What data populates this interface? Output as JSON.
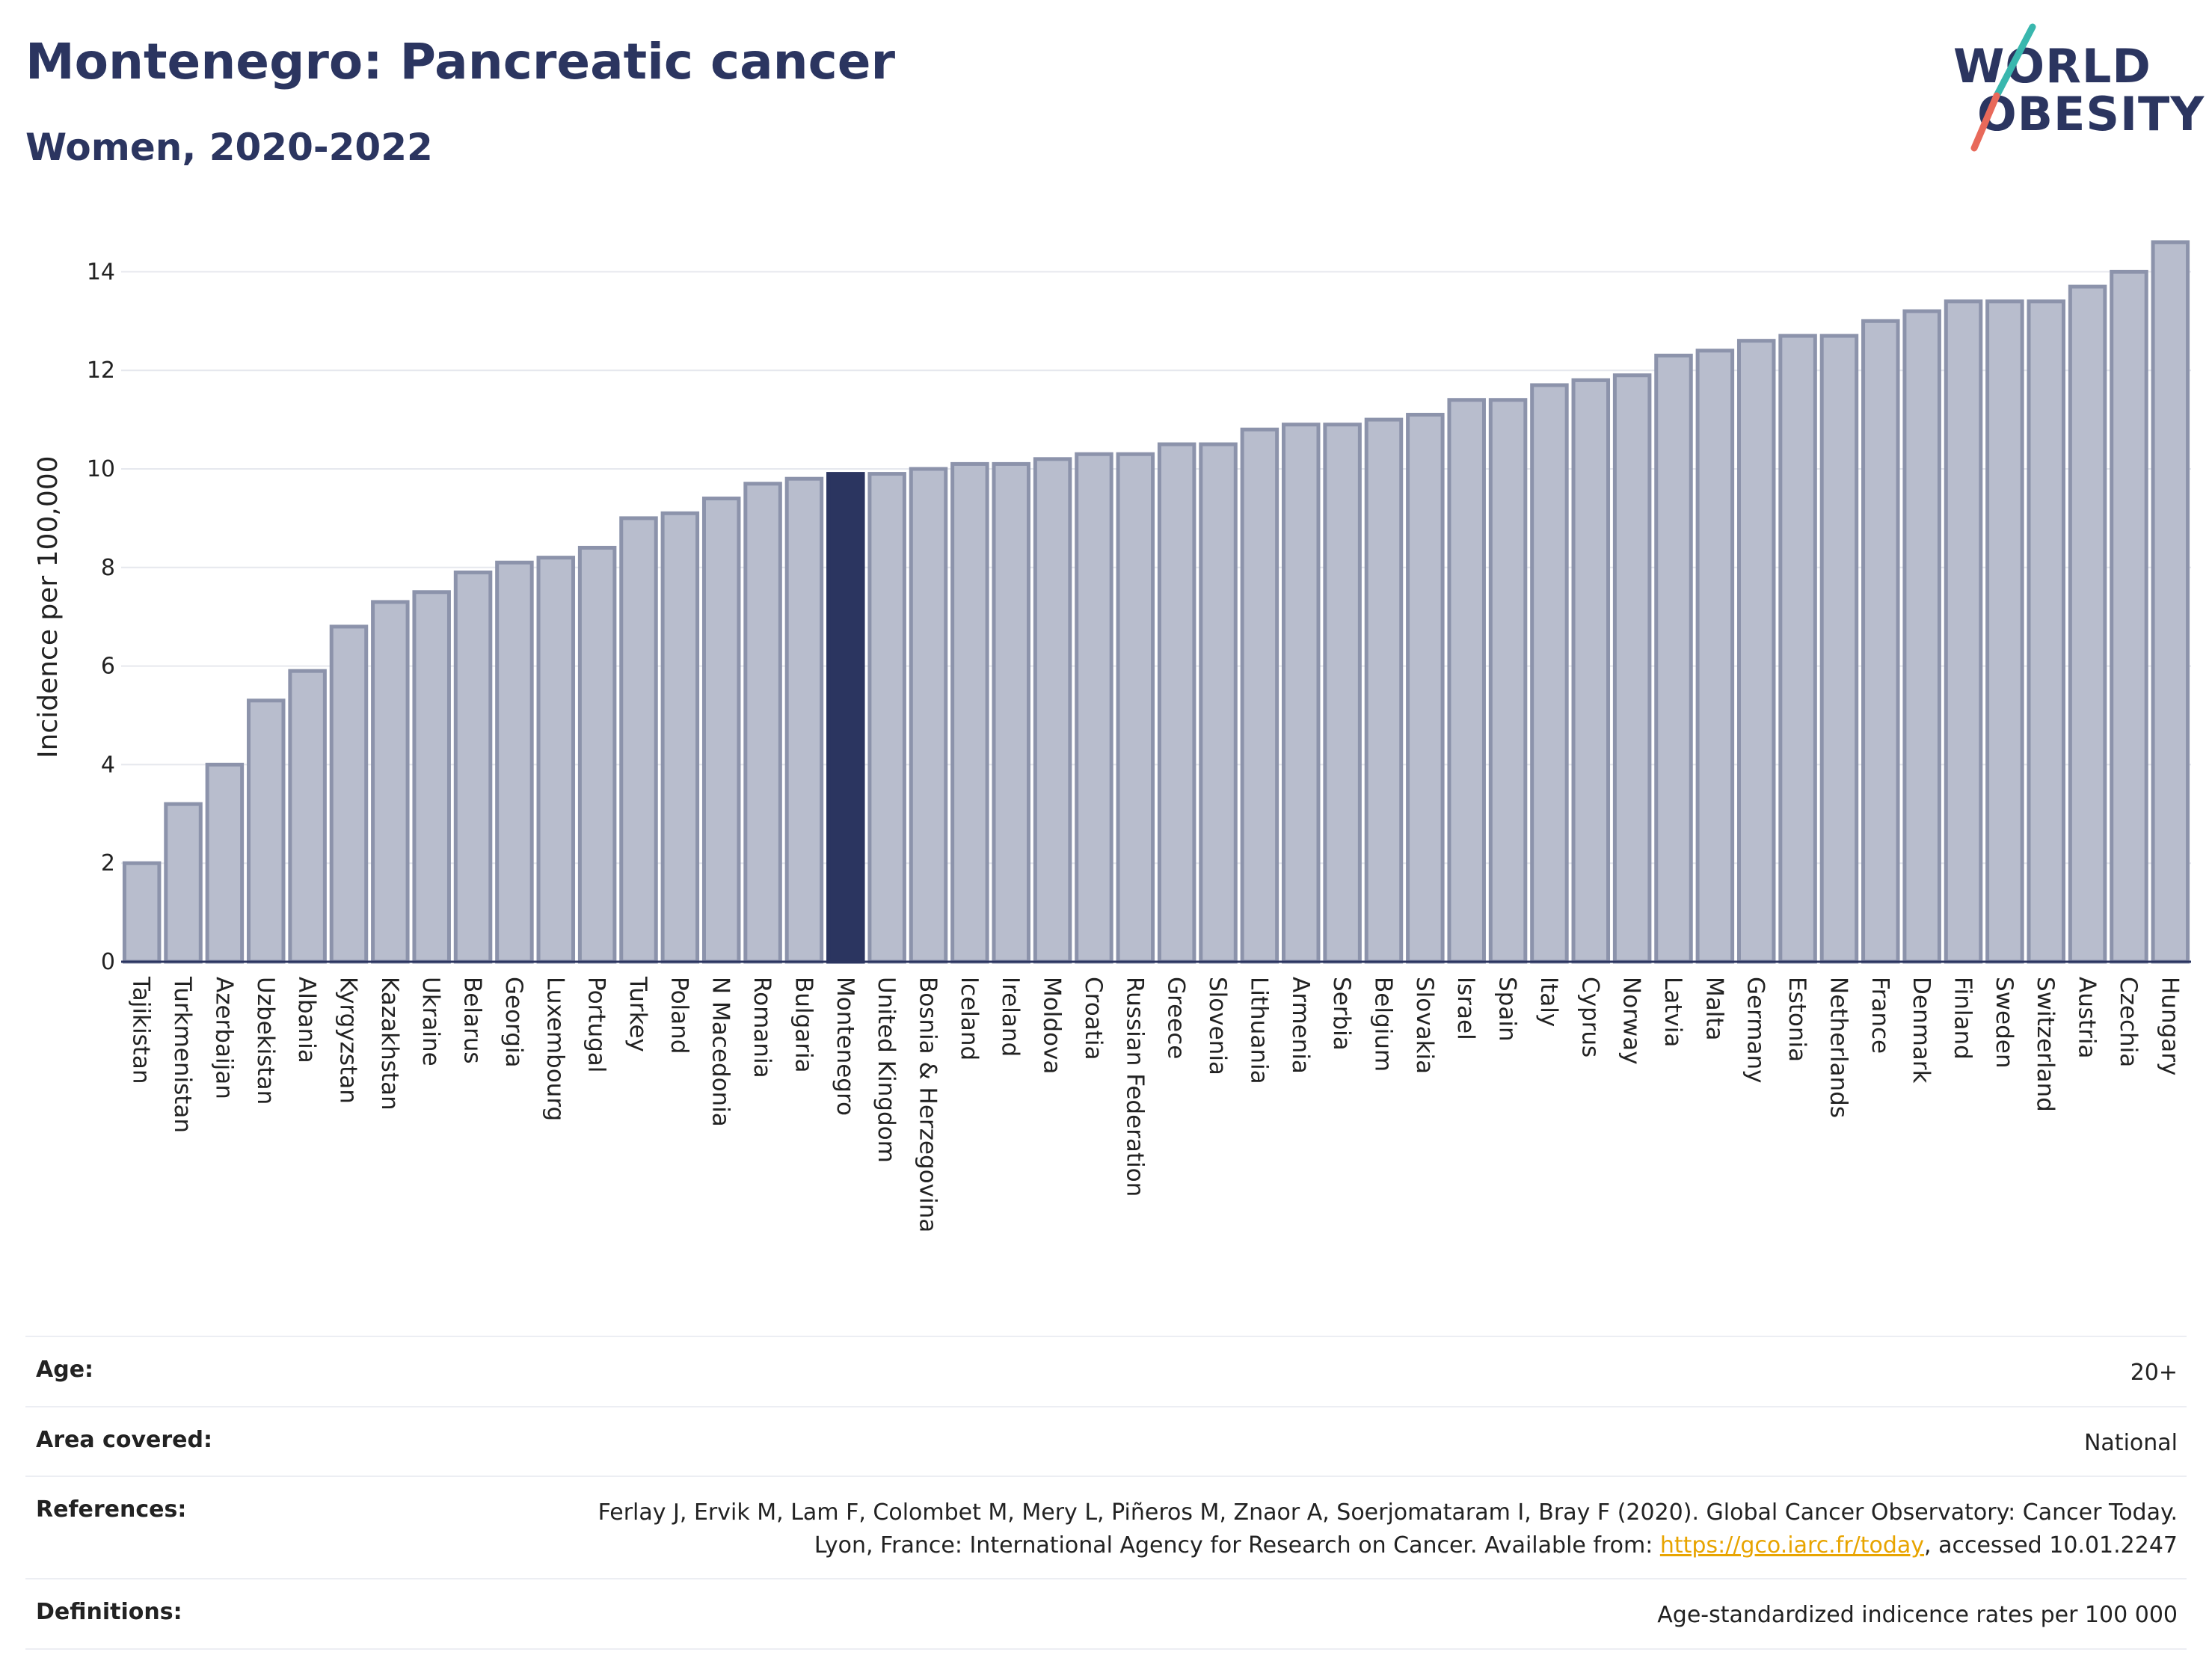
{
  "header": {
    "title": "Montenegro: Pancreatic cancer",
    "subtitle": "Women, 2020-2022"
  },
  "logo": {
    "line1": "WORLD",
    "line2": "OBESITY"
  },
  "colors": {
    "bar": "#b8bdcd",
    "bar_border": "#8c93ab",
    "highlight": "#2b3560",
    "logo_teal": "#39b7ae",
    "logo_coral": "#e8695a"
  },
  "chart_data": {
    "type": "bar",
    "title": "Montenegro: Pancreatic cancer",
    "subtitle": "Women, 2020-2022",
    "xlabel": "",
    "ylabel": "Incidence per 100,000",
    "ylim": [
      0,
      15
    ],
    "yticks": [
      0,
      2,
      4,
      6,
      8,
      10,
      12,
      14
    ],
    "grid": true,
    "highlight": "Montenegro",
    "categories": [
      "Tajikistan",
      "Turkmenistan",
      "Azerbaijan",
      "Uzbekistan",
      "Albania",
      "Kyrgyzstan",
      "Kazakhstan",
      "Ukraine",
      "Belarus",
      "Georgia",
      "Luxembourg",
      "Portugal",
      "Turkey",
      "Poland",
      "N Macedonia",
      "Romania",
      "Bulgaria",
      "Montenegro",
      "United Kingdom",
      "Bosnia & Herzegovina",
      "Iceland",
      "Ireland",
      "Moldova",
      "Croatia",
      "Russian Federation",
      "Greece",
      "Slovenia",
      "Lithuania",
      "Armenia",
      "Serbia",
      "Belgium",
      "Slovakia",
      "Israel",
      "Spain",
      "Italy",
      "Cyprus",
      "Norway",
      "Latvia",
      "Malta",
      "Germany",
      "Estonia",
      "Netherlands",
      "France",
      "Denmark",
      "Finland",
      "Sweden",
      "Switzerland",
      "Austria",
      "Czechia",
      "Hungary"
    ],
    "values": [
      2.0,
      3.2,
      4.0,
      5.3,
      5.9,
      6.8,
      7.3,
      7.5,
      7.9,
      8.1,
      8.2,
      8.4,
      9.0,
      9.1,
      9.4,
      9.7,
      9.8,
      9.9,
      9.9,
      10.0,
      10.1,
      10.1,
      10.2,
      10.3,
      10.3,
      10.5,
      10.5,
      10.8,
      10.9,
      10.9,
      11.0,
      11.1,
      11.4,
      11.4,
      11.7,
      11.8,
      11.9,
      12.3,
      12.4,
      12.6,
      12.7,
      12.7,
      13.0,
      13.2,
      13.4,
      13.4,
      13.4,
      13.7,
      14.0,
      14.6
    ]
  },
  "meta": [
    {
      "key": "Age:",
      "value": "20+"
    },
    {
      "key": "Area covered:",
      "value": "National"
    },
    {
      "key": "References:",
      "value_before": "Ferlay J, Ervik M, Lam F, Colombet M, Mery L, Piñeros M, Znaor A, Soerjomataram I, Bray F (2020). Global Cancer Observatory: Cancer Today. Lyon, France: International Agency for Research on Cancer. Available from: ",
      "link": "https://gco.iarc.fr/today",
      "value_after": ", accessed 10.01.2247"
    },
    {
      "key": "Definitions:",
      "value": "Age-standardized indicence rates per 100 000"
    }
  ]
}
